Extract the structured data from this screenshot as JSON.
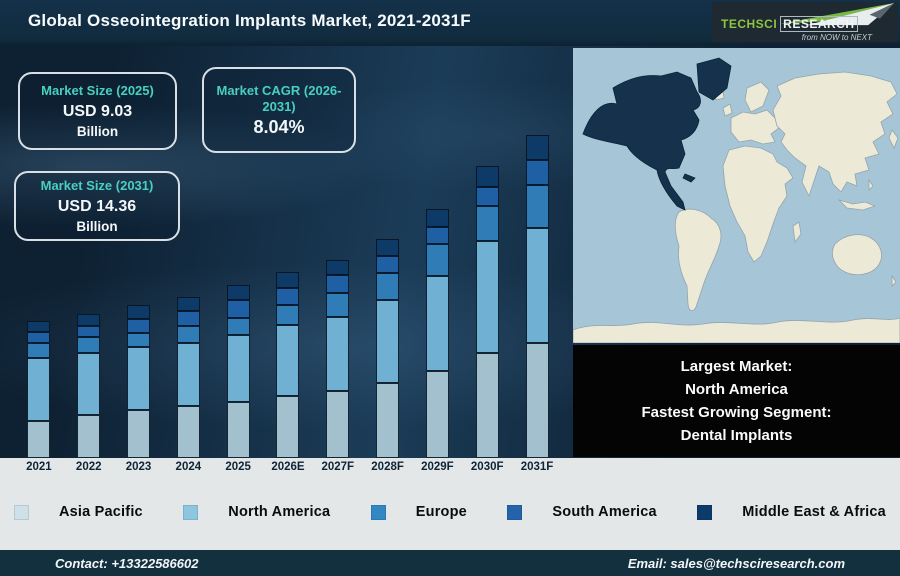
{
  "header": {
    "title": "Global Osseointegration Implants Market, 2021-2031F",
    "logo": {
      "brand_primary": "TechSci",
      "brand_secondary": "Research",
      "tagline": "from NOW to NEXT"
    }
  },
  "info_boxes": [
    {
      "title": "Market Size (2025)",
      "value": "USD 9.03",
      "unit": "Billion"
    },
    {
      "title": "Market CAGR (2026-2031)",
      "value": "8.04%",
      "unit": ""
    },
    {
      "title": "Market Size (2031)",
      "value": "USD 14.36",
      "unit": "Billion"
    }
  ],
  "chart_data": {
    "type": "bar",
    "stacked": true,
    "title": "Global Osseointegration Implants Market, 2021-2031F",
    "categories": [
      "2021",
      "2022",
      "2023",
      "2024",
      "2025",
      "2026E",
      "2027F",
      "2028F",
      "2029F",
      "2030F",
      "2031F"
    ],
    "series": [
      {
        "name": "Asia Pacific",
        "color": "#a2c0cd",
        "values": [
          37,
          43,
          48,
          52,
          56,
          62,
          67,
          75,
          87,
          105,
          115
        ]
      },
      {
        "name": "North America",
        "color": "#6fb0d3",
        "values": [
          63,
          62,
          63,
          63,
          67,
          71,
          74,
          83,
          95,
          112,
          115
        ]
      },
      {
        "name": "Europe",
        "color": "#2f7cb7",
        "values": [
          15,
          16,
          14,
          17,
          17,
          20,
          24,
          27,
          32,
          35,
          43
        ]
      },
      {
        "name": "South America",
        "color": "#1f5fa4",
        "values": [
          11,
          11,
          14,
          15,
          18,
          17,
          18,
          17,
          17,
          19,
          25
        ]
      },
      {
        "name": "Middle East & Africa",
        "color": "#0e3a68",
        "values": [
          11,
          12,
          14,
          14,
          15,
          16,
          15,
          17,
          18,
          21,
          25
        ]
      }
    ],
    "xlabel": "",
    "ylabel": "",
    "value_axis": "none shown — segment values are relative heights estimated from the image (px)",
    "legend_position": "bottom",
    "anchors_shown_on_image": {
      "market_size_2025_usd_billion": 9.03,
      "market_size_2031_usd_billion": 14.36,
      "cagr_2026_2031_percent": 8.04
    }
  },
  "legend": {
    "items": [
      {
        "label": "Asia Pacific",
        "color": "#cfe0e9"
      },
      {
        "label": "North America",
        "color": "#8fc6df"
      },
      {
        "label": "Europe",
        "color": "#3387c2"
      },
      {
        "label": "South America",
        "color": "#2463ab"
      },
      {
        "label": "Middle East & Africa",
        "color": "#0c3a69"
      }
    ]
  },
  "map": {
    "name": "world-map",
    "highlight_region": "North America",
    "ocean_color": "#a6c6d7",
    "land_color": "#ece9d6",
    "highlight_color": "#15314b"
  },
  "callout": {
    "lines": [
      "Largest Market:",
      "North America",
      "Fastest Growing Segment:",
      "Dental Implants"
    ]
  },
  "footer": {
    "contact": "Contact: +13322586602",
    "email": "Email: sales@techsciresearch.com"
  },
  "theme": {
    "accent_teal": "#48cfc0",
    "header_bg": "#112b3e",
    "panel_bg": "#13293b",
    "strip_bg": "#e3e7e8",
    "footer_bg": "#13303f",
    "logo_green": "#8dc63f"
  }
}
